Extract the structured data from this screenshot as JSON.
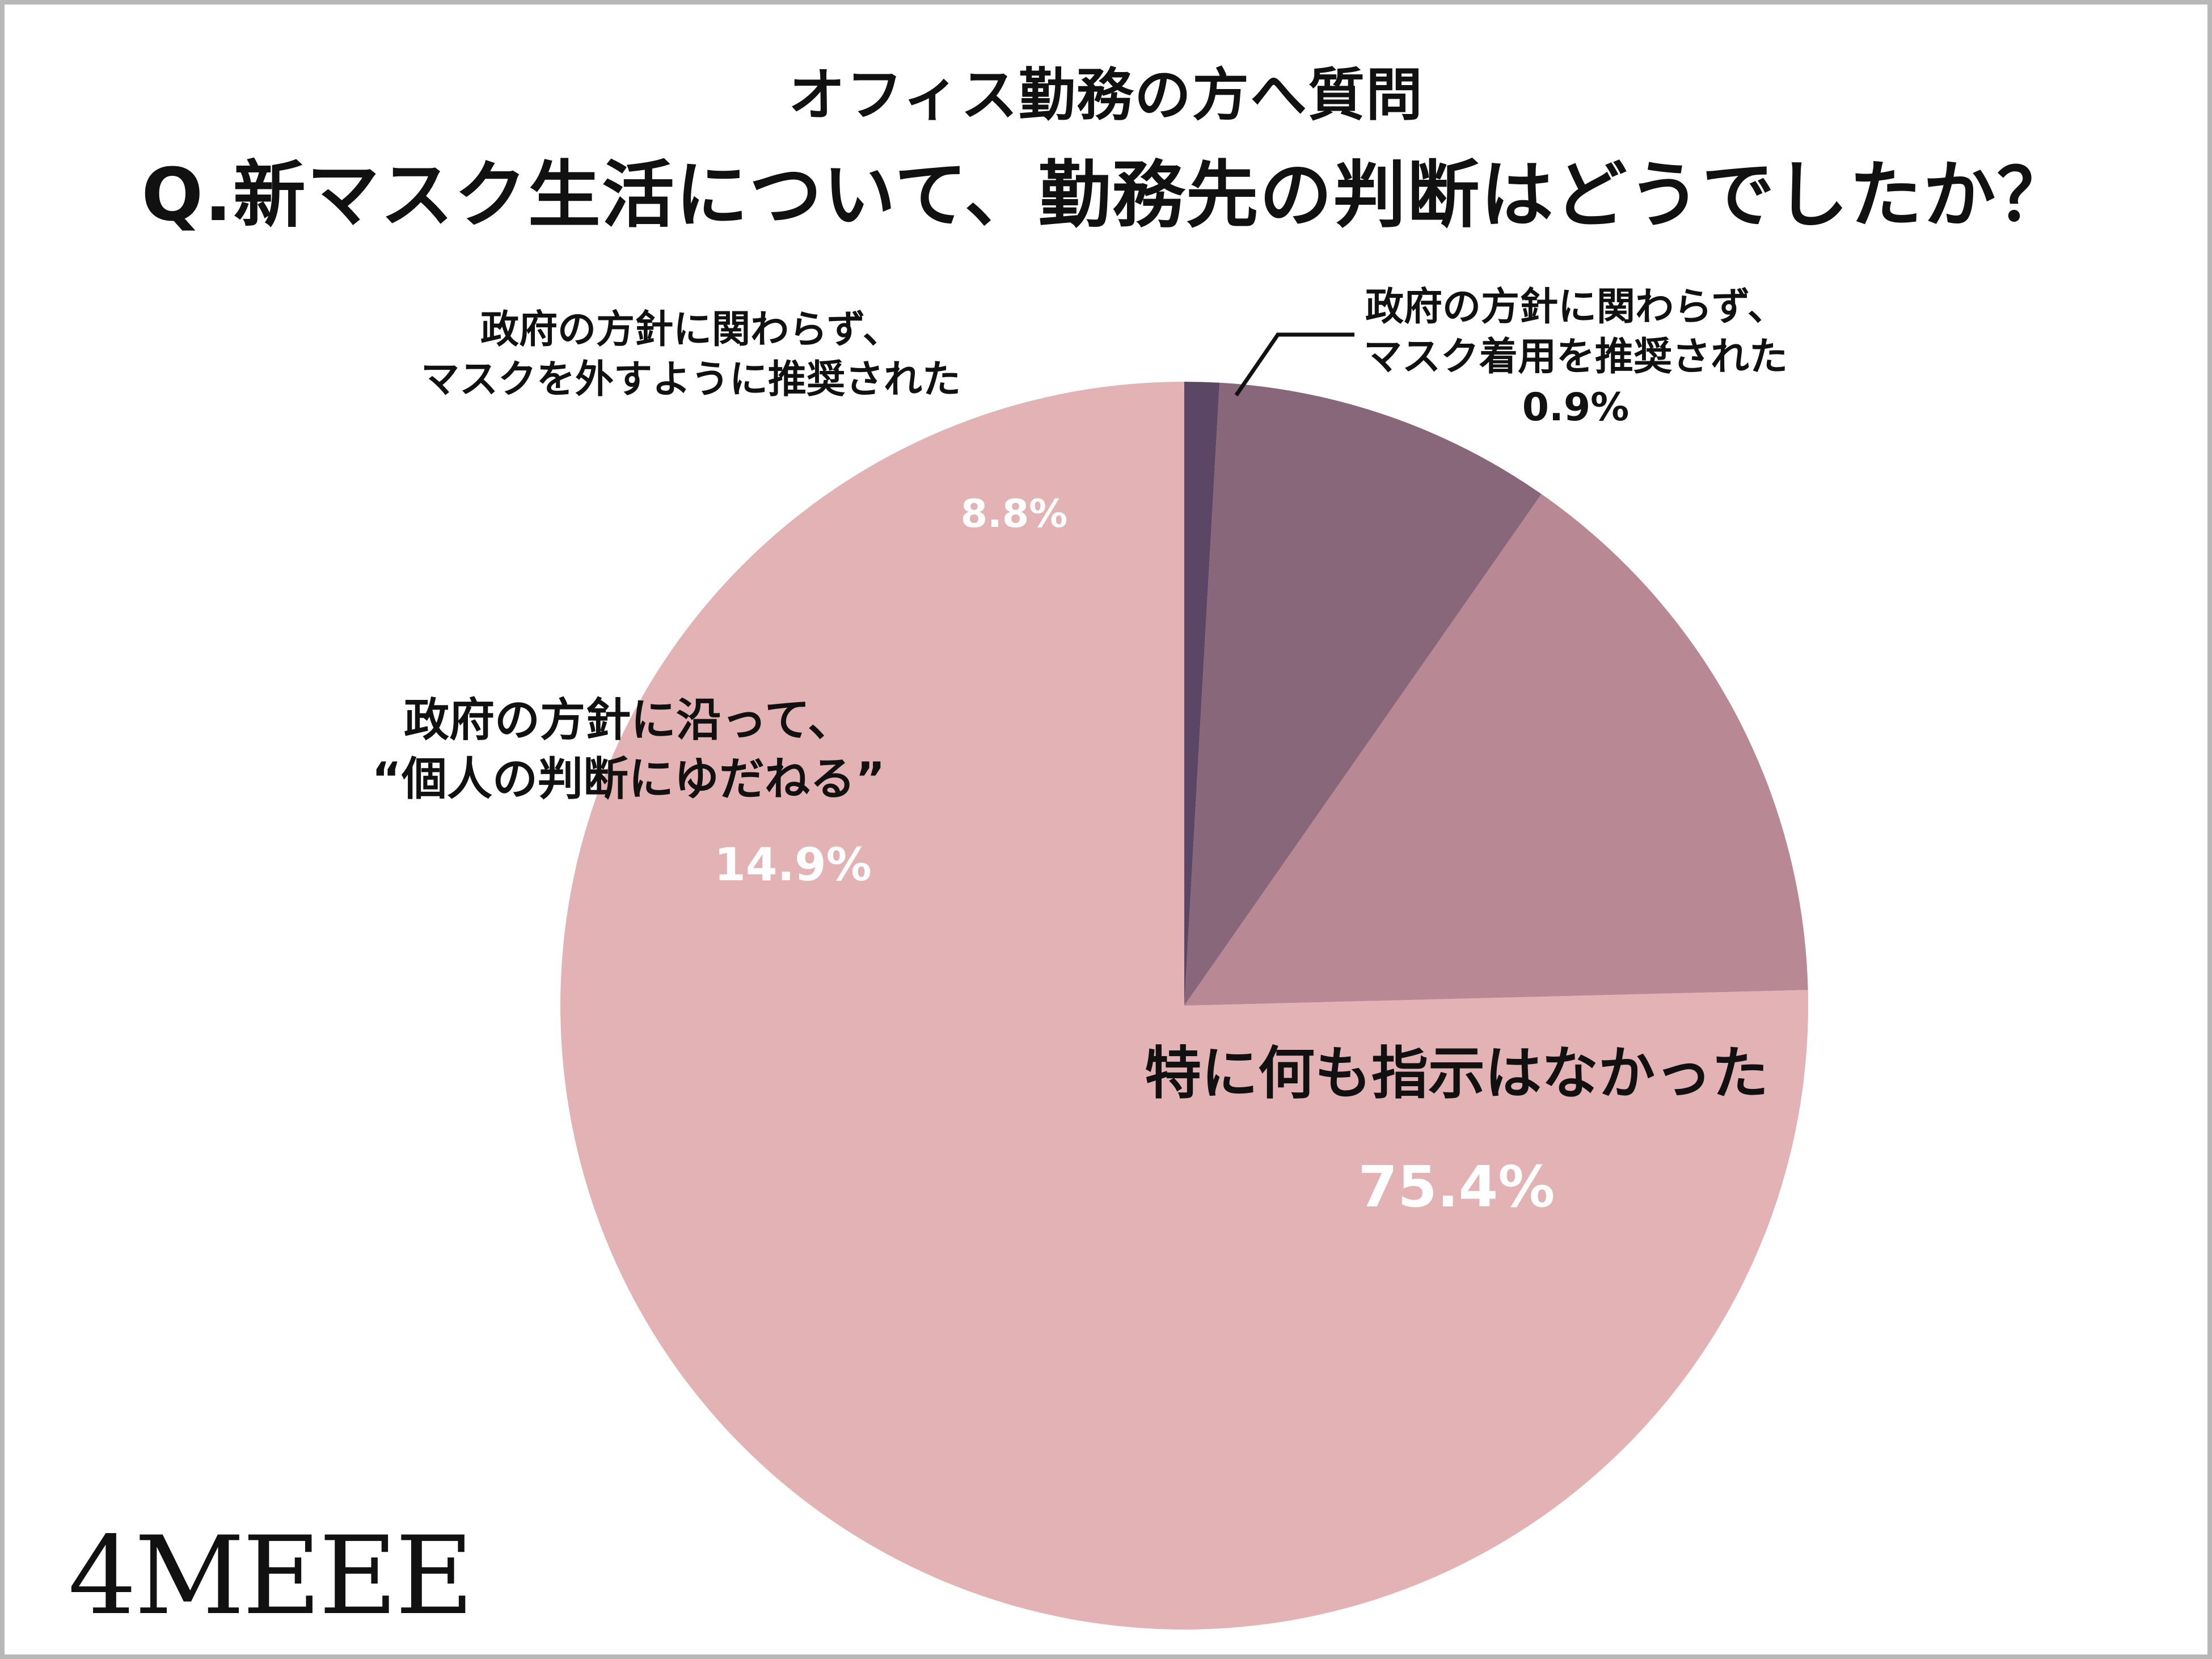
{
  "chart_data": {
    "type": "pie",
    "subtitle": "オフィス勤務の方へ質問",
    "title": "Q.新マスク生活について、勤務先の判断はどうでしたか？",
    "slices": [
      {
        "label_lines": [
          "特に何も指示はなかった"
        ],
        "value": 75.4,
        "value_label": "75.4%",
        "color": "#e3b2b4"
      },
      {
        "label_lines": [
          "政府の方針に沿って、",
          "“個人の判断にゆだねる”"
        ],
        "value": 14.9,
        "value_label": "14.9%",
        "color": "#b88894"
      },
      {
        "label_lines": [
          "政府の方針に関わらず、",
          "マスクを外すように推奨された"
        ],
        "value": 8.8,
        "value_label": "8.8%",
        "color": "#88677b"
      },
      {
        "label_lines": [
          "政府の方針に関わらず、",
          "マスク着用を推奨された"
        ],
        "value": 0.9,
        "value_label": "0.9%",
        "color": "#5b4765"
      }
    ],
    "start_angle": "12 o'clock",
    "direction": "counterclockwise"
  },
  "logo": "4MEEE"
}
